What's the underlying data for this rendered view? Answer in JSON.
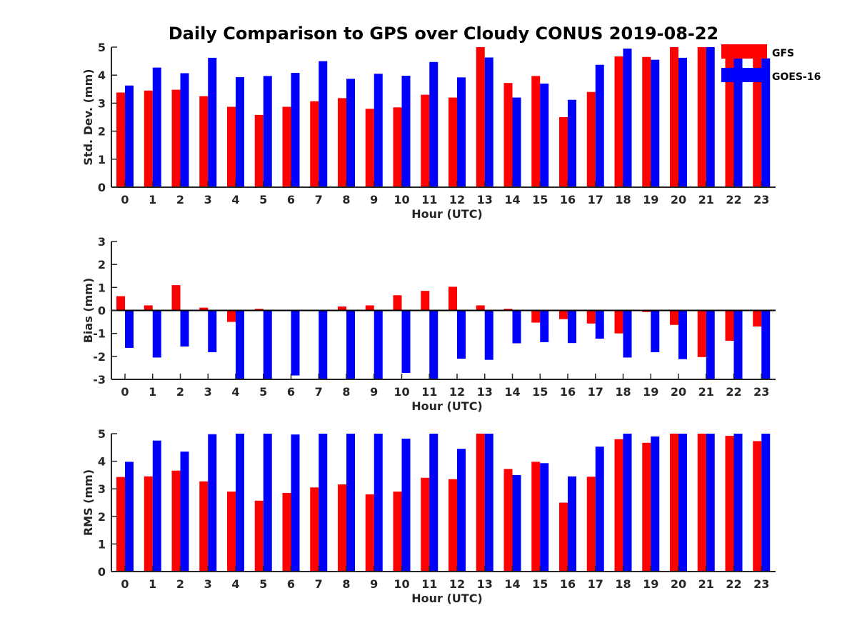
{
  "chart_data": {
    "type": "bar",
    "title": "Daily Comparison to GPS over Cloudy CONUS 2019-08-22",
    "legend": {
      "placement": "top-right",
      "entries": [
        {
          "name": "GFS",
          "color": "#ff0000"
        },
        {
          "name": "GOES-16",
          "color": "#0000ff"
        }
      ]
    },
    "categories": [
      "0",
      "1",
      "2",
      "3",
      "4",
      "5",
      "6",
      "7",
      "8",
      "9",
      "10",
      "11",
      "12",
      "13",
      "14",
      "15",
      "16",
      "17",
      "18",
      "19",
      "20",
      "21",
      "22",
      "23"
    ],
    "panels": [
      {
        "key": "stddev",
        "ylabel": "Std. Dev. (mm)",
        "xlabel": "Hour (UTC)",
        "ylim": [
          0,
          5
        ],
        "yticks": [
          "0",
          "1",
          "2",
          "3",
          "4",
          "5"
        ],
        "series": [
          {
            "name": "GFS",
            "values": [
              3.38,
              3.45,
              3.48,
              3.25,
              2.87,
              2.58,
              2.87,
              3.07,
              3.18,
              2.8,
              2.85,
              3.3,
              3.2,
              5.0,
              3.72,
              3.97,
              2.5,
              3.4,
              4.67,
              4.65,
              5.0,
              5.0,
              4.75,
              4.7
            ]
          },
          {
            "name": "GOES-16",
            "values": [
              3.63,
              4.27,
              4.07,
              4.62,
              3.93,
              3.97,
              4.08,
              4.5,
              3.87,
              4.05,
              3.98,
              4.47,
              3.92,
              4.63,
              3.2,
              3.7,
              3.12,
              4.37,
              4.95,
              4.55,
              4.62,
              5.0,
              5.0,
              4.6
            ]
          }
        ]
      },
      {
        "key": "bias",
        "ylabel": "Bias (mm)",
        "xlabel": "Hour (UTC)",
        "ylim": [
          -3,
          3
        ],
        "yticks": [
          "-3",
          "-2",
          "-1",
          "0",
          "1",
          "2",
          "3"
        ],
        "series": [
          {
            "name": "GFS",
            "values": [
              0.62,
              0.22,
              1.1,
              0.12,
              -0.5,
              0.07,
              0.03,
              -0.03,
              0.17,
              0.22,
              0.66,
              0.85,
              1.03,
              0.22,
              0.07,
              -0.53,
              -0.38,
              -0.57,
              -1.0,
              -0.07,
              -0.63,
              -2.03,
              -1.32,
              -0.7
            ]
          },
          {
            "name": "GOES-16",
            "values": [
              -1.63,
              -2.05,
              -1.57,
              -1.82,
              -3.0,
              -3.0,
              -2.83,
              -3.0,
              -3.0,
              -3.0,
              -2.72,
              -3.0,
              -2.1,
              -2.15,
              -1.43,
              -1.38,
              -1.42,
              -1.23,
              -2.05,
              -1.82,
              -2.12,
              -3.0,
              -3.0,
              -3.0
            ]
          }
        ]
      },
      {
        "key": "rms",
        "ylabel": "RMS (mm)",
        "xlabel": "Hour (UTC)",
        "ylim": [
          0,
          5
        ],
        "yticks": [
          "0",
          "1",
          "2",
          "3",
          "4",
          "5"
        ],
        "series": [
          {
            "name": "GFS",
            "values": [
              3.43,
              3.45,
              3.66,
              3.27,
              2.9,
              2.57,
              2.85,
              3.05,
              3.16,
              2.8,
              2.9,
              3.4,
              3.35,
              5.0,
              3.72,
              3.98,
              2.5,
              3.44,
              4.8,
              4.67,
              5.0,
              5.0,
              4.92,
              4.73
            ]
          },
          {
            "name": "GOES-16",
            "values": [
              3.98,
              4.75,
              4.35,
              4.98,
              5.0,
              5.0,
              4.97,
              5.0,
              5.0,
              5.0,
              4.82,
              5.0,
              4.45,
              5.0,
              3.5,
              3.93,
              3.45,
              4.53,
              5.0,
              4.9,
              5.0,
              5.0,
              5.0,
              5.0
            ]
          }
        ]
      }
    ]
  }
}
